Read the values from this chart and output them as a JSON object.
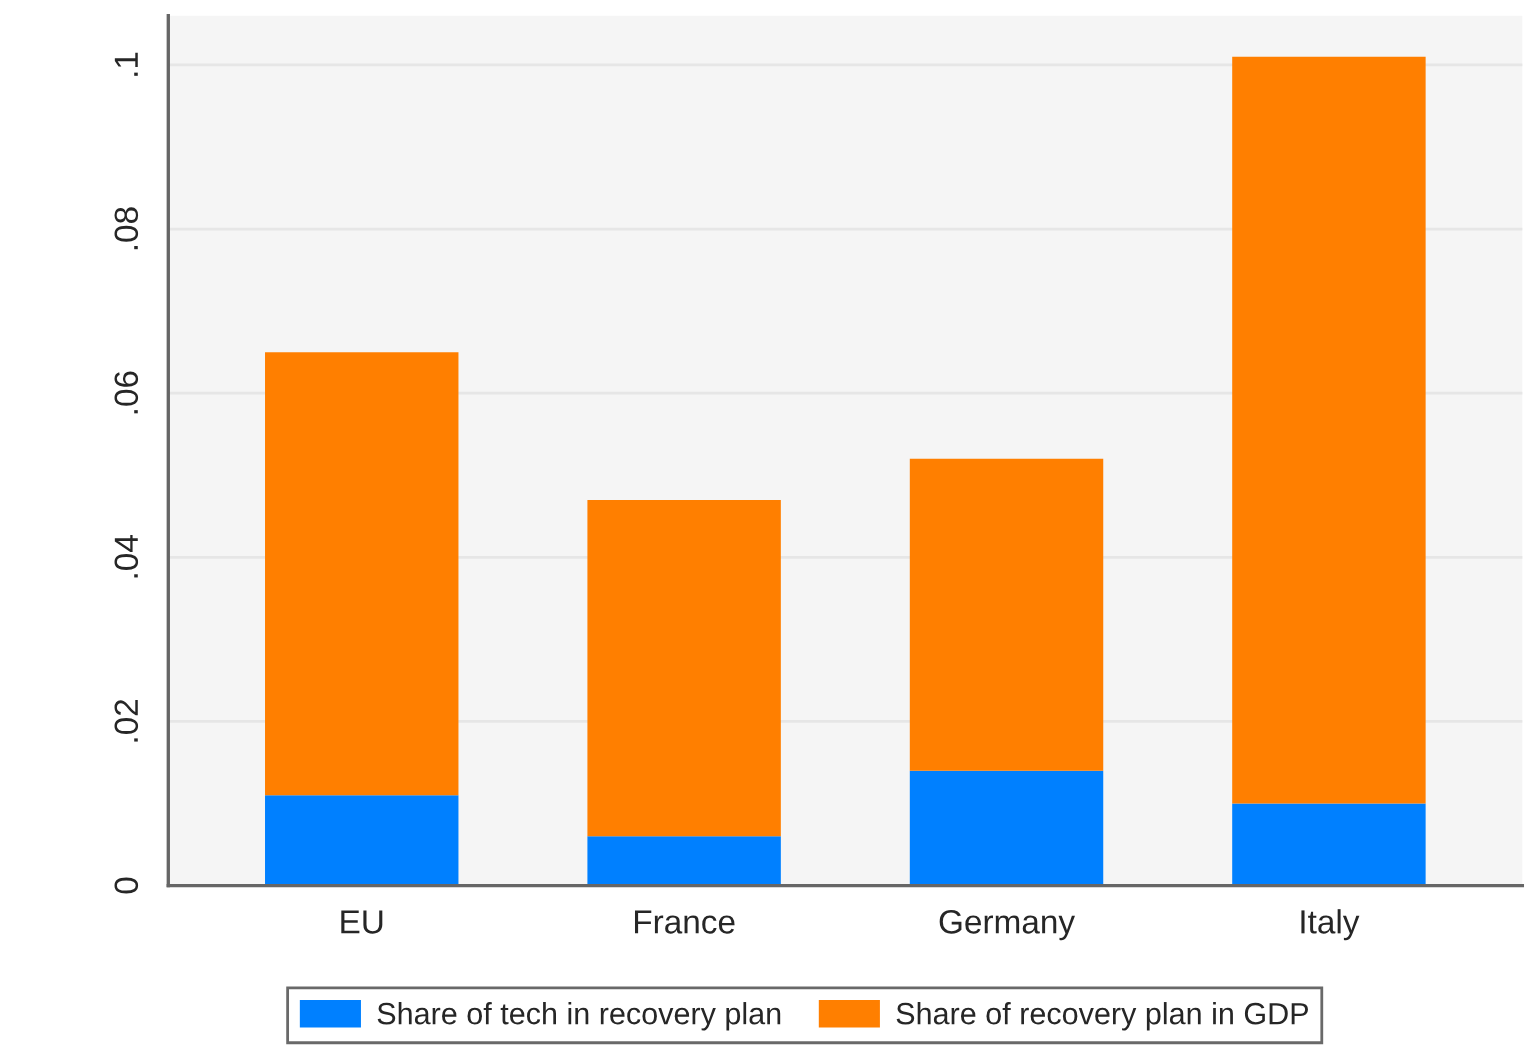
{
  "chart_data": {
    "type": "bar",
    "stacked": true,
    "categories": [
      "EU",
      "France",
      "Germany",
      "Italy"
    ],
    "series": [
      {
        "name": "Share of tech in recovery plan",
        "color": "#0080ff",
        "values": [
          0.011,
          0.006,
          0.014,
          0.01
        ]
      },
      {
        "name": "Share of recovery plan in GDP",
        "color": "#ff7f00",
        "values": [
          0.054,
          0.041,
          0.038,
          0.091
        ]
      }
    ],
    "ylim": [
      0,
      0.106
    ],
    "yticks": [
      {
        "value": 0,
        "label": "0"
      },
      {
        "value": 0.02,
        "label": ".02"
      },
      {
        "value": 0.04,
        "label": ".04"
      },
      {
        "value": 0.06,
        "label": ".06"
      },
      {
        "value": 0.08,
        "label": ".08"
      },
      {
        "value": 0.1,
        "label": ".1"
      }
    ],
    "grid": "y",
    "legend": "bottom"
  }
}
